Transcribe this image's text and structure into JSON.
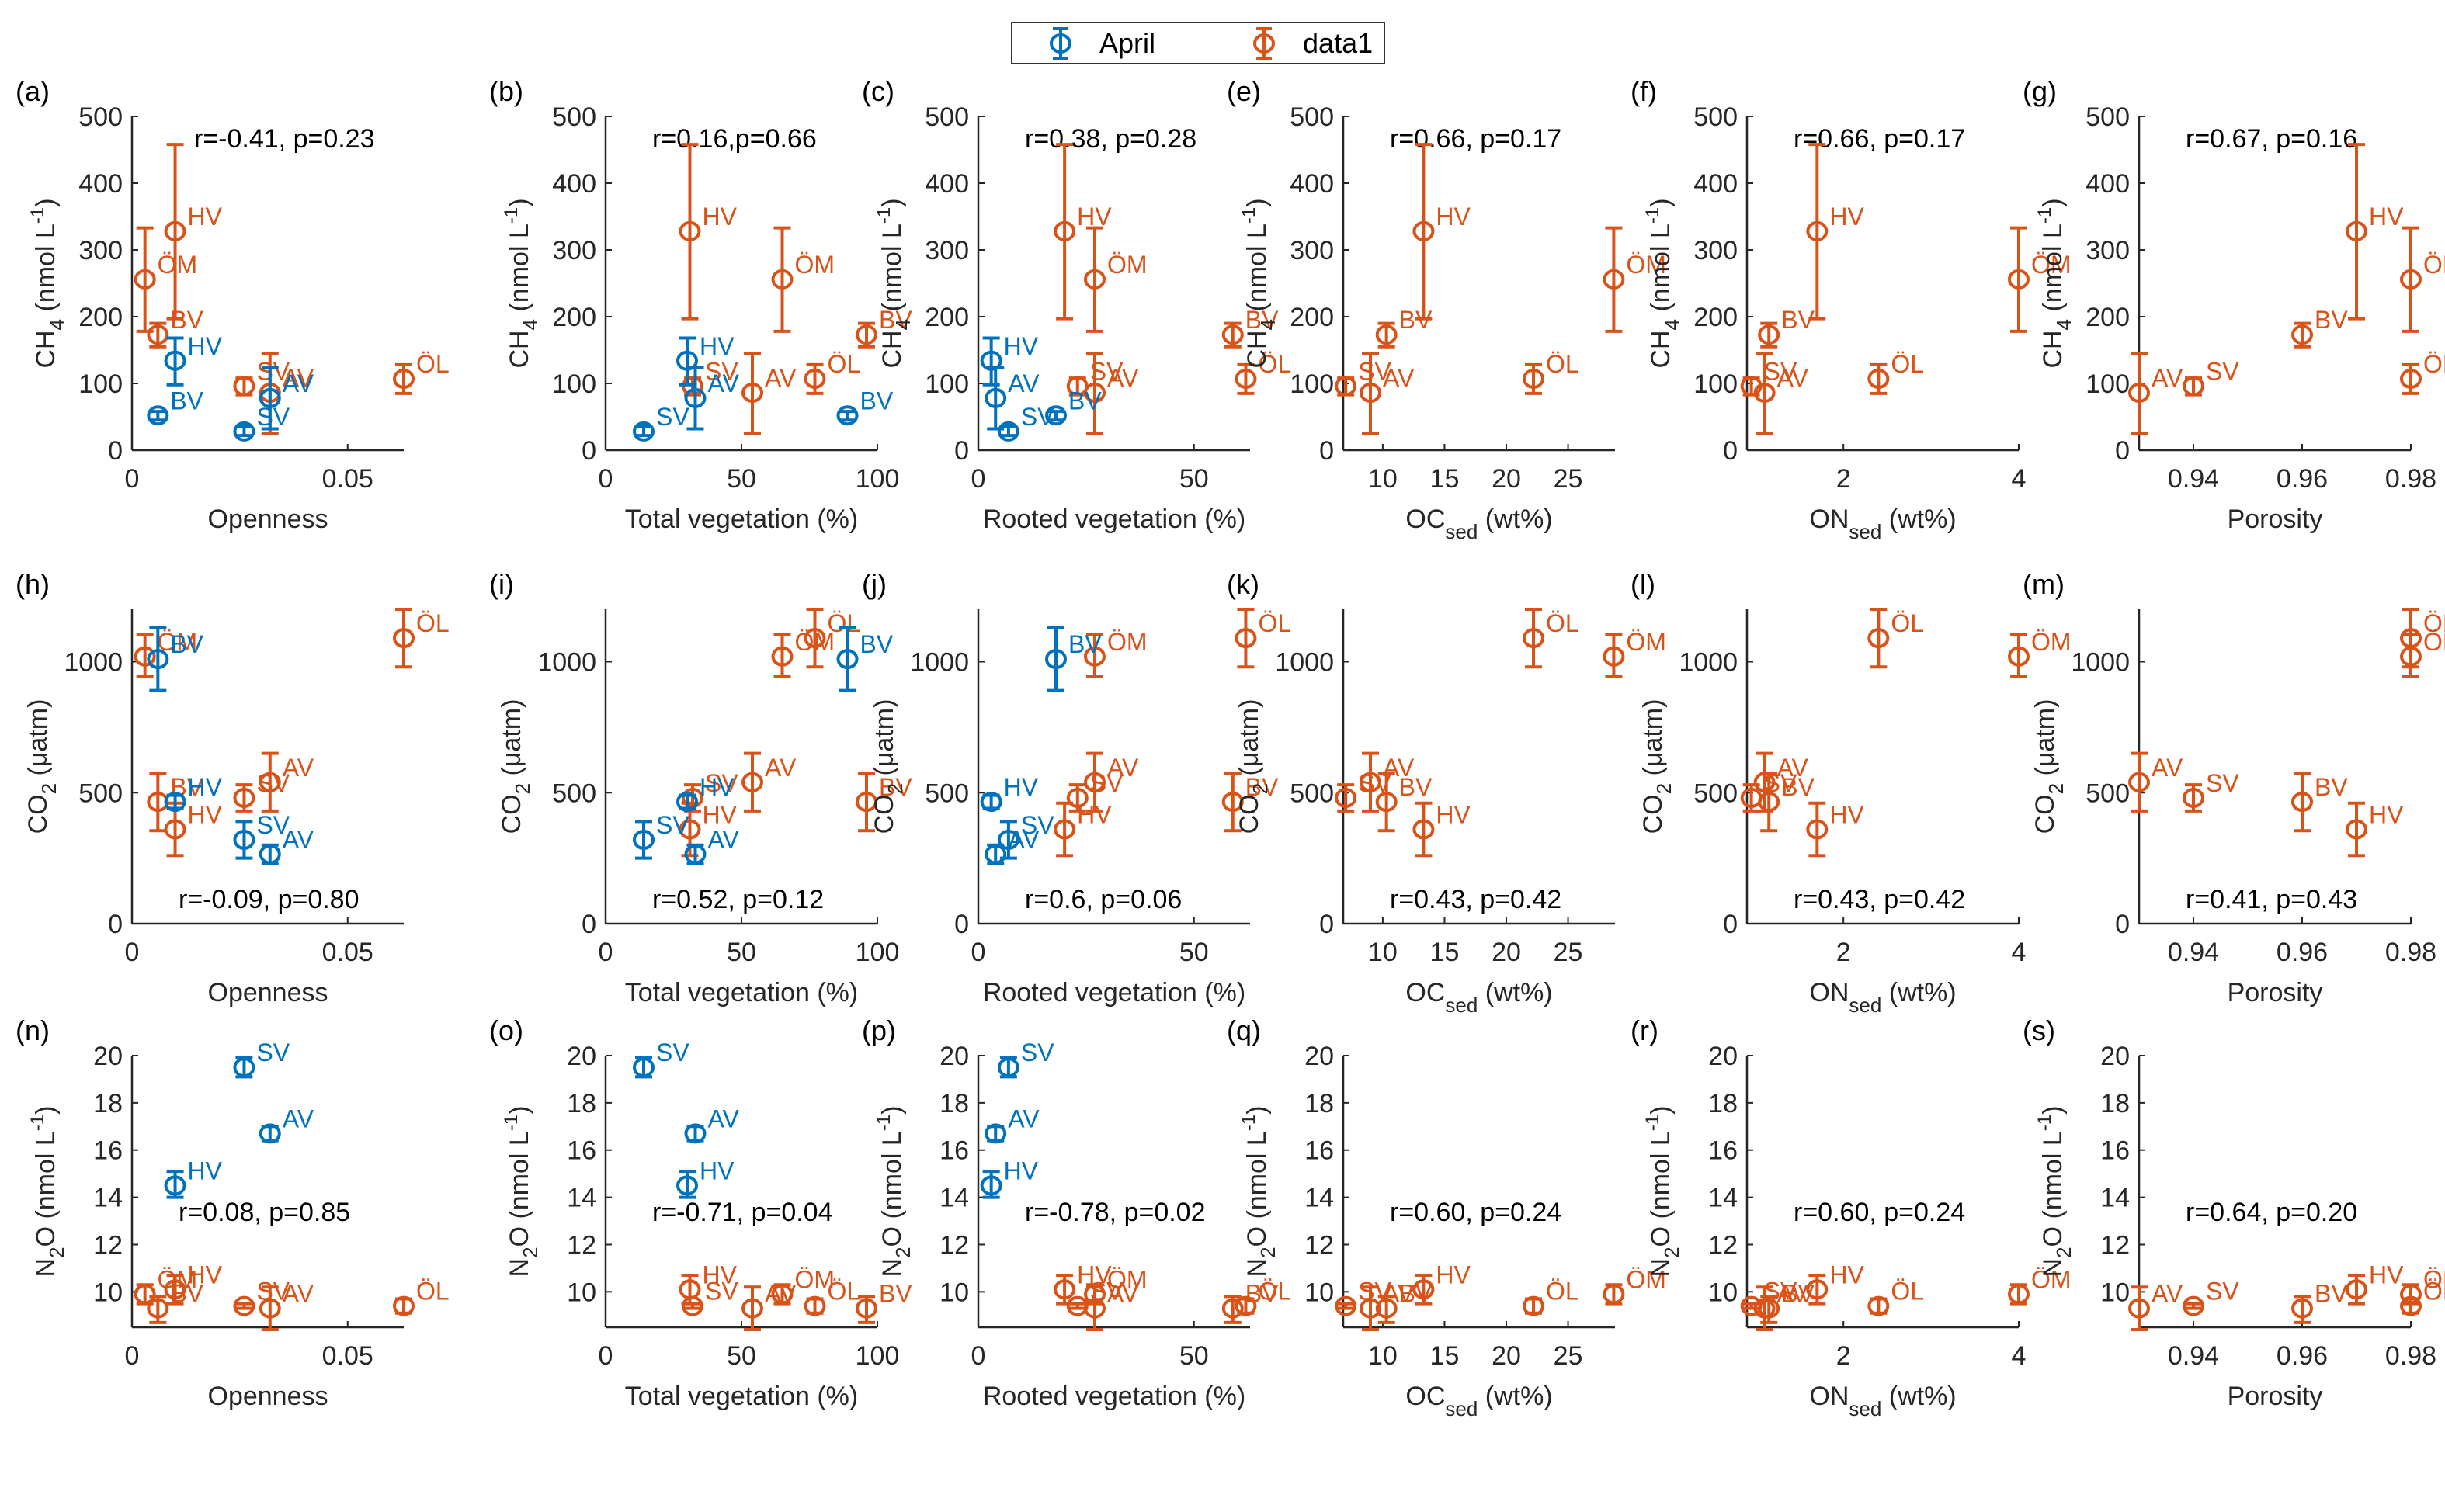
{
  "colors": {
    "April": "#0072BD",
    "data1": "#D95319",
    "axis": "#262626"
  },
  "legend": {
    "items": [
      {
        "label": "April",
        "color": "#0072BD"
      },
      {
        "label": "data1",
        "color": "#D95319"
      }
    ]
  },
  "chart_data": {
    "type": "scatter",
    "description": "3x6 grid of scatter plots with error bars: gases (CH4, CO2, N2O) vs site predictors",
    "predictors": {
      "Openness": {
        "xlabel": "Openness",
        "xlim": [
          0,
          0.063
        ],
        "xticks": [
          "0",
          "0.05"
        ],
        "xtickvals": [
          0,
          0.05
        ],
        "data1": {
          "ÖM": 0.003,
          "HV": 0.01,
          "BV": 0.006,
          "SV": 0.026,
          "AV": 0.032,
          "ÖL": 0.063
        },
        "April": {
          "BV": 0.006,
          "HV": 0.01,
          "SV": 0.026,
          "AV": 0.032
        }
      },
      "TotalVeg": {
        "xlabel": "Total vegetation (%)",
        "xlim": [
          0,
          100
        ],
        "xticks": [
          "0",
          "50",
          "100"
        ],
        "xtickvals": [
          0,
          50,
          100
        ],
        "data1": {
          "ÖM": 65,
          "HV": 31,
          "BV": 96,
          "SV": 32,
          "AV": 54,
          "ÖL": 77
        },
        "April": {
          "BV": 89,
          "HV": 30,
          "SV": 14,
          "AV": 33
        }
      },
      "RootedVeg": {
        "xlabel": "Rooted vegetation (%)",
        "xlim": [
          0,
          63
        ],
        "xticks": [
          "0",
          "50"
        ],
        "xtickvals": [
          0,
          50
        ],
        "data1": {
          "ÖM": 27,
          "HV": 20,
          "BV": 59,
          "SV": 23,
          "AV": 27,
          "ÖL": 62
        },
        "April": {
          "BV": 18,
          "HV": 3,
          "SV": 7,
          "AV": 4
        }
      },
      "OCsed": {
        "xlabel": "OC",
        "xlabel_sub": "sed",
        "xlabel_tail": " (wt%)",
        "xlim": [
          6.8,
          28.8
        ],
        "xticks": [
          "10",
          "15",
          "20",
          "25"
        ],
        "xtickvals": [
          10,
          15,
          20,
          25
        ],
        "data1": {
          "ÖM": 28.7,
          "HV": 13.3,
          "BV": 10.3,
          "SV": 7.0,
          "AV": 9.0,
          "ÖL": 22.2
        },
        "April": {}
      },
      "ONsed": {
        "xlabel": "ON",
        "xlabel_sub": "sed",
        "xlabel_tail": " (wt%)",
        "xlim": [
          0.9,
          4.0
        ],
        "xticks": [
          "2",
          "4"
        ],
        "xtickvals": [
          2,
          4
        ],
        "data1": {
          "ÖM": 4.0,
          "HV": 1.7,
          "BV": 1.15,
          "SV": 0.95,
          "AV": 1.1,
          "ÖL": 2.4
        },
        "April": {}
      },
      "Porosity": {
        "xlabel": "Porosity",
        "xlim": [
          0.93,
          0.98
        ],
        "xticks": [
          "0.94",
          "0.96",
          "0.98"
        ],
        "xtickvals": [
          0.94,
          0.96,
          0.98
        ],
        "data1": {
          "ÖM": 0.98,
          "HV": 0.97,
          "BV": 0.96,
          "SV": 0.94,
          "AV": 0.93,
          "ÖL": 0.98
        },
        "April": {}
      }
    },
    "gases": {
      "CH4": {
        "ylabel": "CH",
        "ylabel_sub": "4",
        "ylabel_tail": " (nmol L",
        "ylabel_sup": "-1",
        "ylabel_end": ")",
        "ylim": [
          0,
          500
        ],
        "yticks": [
          "0",
          "100",
          "200",
          "300",
          "400",
          "500"
        ],
        "ytickvals": [
          0,
          100,
          200,
          300,
          400,
          500
        ],
        "data1": {
          "ÖM": [
            256,
            178,
            333
          ],
          "HV": [
            328,
            197,
            458
          ],
          "BV": [
            173,
            155,
            190
          ],
          "SV": [
            96,
            83,
            108
          ],
          "AV": [
            86,
            25,
            145
          ],
          "ÖL": [
            107,
            85,
            128
          ]
        },
        "April": {
          "BV": [
            52,
            45,
            58
          ],
          "HV": [
            134,
            98,
            168
          ],
          "SV": [
            28,
            22,
            35
          ],
          "AV": [
            78,
            32,
            124
          ]
        }
      },
      "CO2": {
        "ylabel": "CO",
        "ylabel_sub": "2",
        "ylabel_tail": " (μatm)",
        "ylabel_sup": "",
        "ylabel_end": "",
        "ylim": [
          0,
          1200
        ],
        "yticks": [
          "0",
          "500",
          "1000"
        ],
        "ytickvals": [
          0,
          500,
          1000
        ],
        "data1": {
          "ÖM": [
            1020,
            945,
            1105
          ],
          "HV": [
            360,
            260,
            460
          ],
          "BV": [
            465,
            355,
            575
          ],
          "SV": [
            480,
            430,
            530
          ],
          "AV": [
            540,
            430,
            650
          ],
          "ÖL": [
            1090,
            980,
            1200
          ]
        },
        "April": {
          "BV": [
            1010,
            890,
            1130
          ],
          "HV": [
            465,
            440,
            490
          ],
          "SV": [
            320,
            250,
            390
          ],
          "AV": [
            265,
            230,
            300
          ]
        }
      },
      "N2O": {
        "ylabel": "N",
        "ylabel_sub": "2",
        "ylabel_tail": "O (nmol L",
        "ylabel_sup": "-1",
        "ylabel_end": ")",
        "ylim": [
          8.5,
          20
        ],
        "yticks": [
          "10",
          "12",
          "14",
          "16",
          "18",
          "20"
        ],
        "ytickvals": [
          10,
          12,
          14,
          16,
          18,
          20
        ],
        "data1": {
          "ÖM": [
            9.9,
            9.5,
            10.3
          ],
          "HV": [
            10.1,
            9.5,
            10.7
          ],
          "BV": [
            9.3,
            8.7,
            9.8
          ],
          "SV": [
            9.4,
            9.3,
            9.5
          ],
          "AV": [
            9.3,
            8.4,
            10.2
          ],
          "ÖL": [
            9.4,
            9.1,
            9.7
          ]
        },
        "April": {
          "SV": [
            19.5,
            19.1,
            19.9
          ],
          "AV": [
            16.7,
            16.4,
            17.0
          ],
          "HV": [
            14.5,
            14.0,
            15.1
          ]
        }
      }
    },
    "panels": [
      {
        "letter": "(a)",
        "gas": "CH4",
        "pred": "Openness",
        "stat": "r=-0.41, p=0.23",
        "stat_pos": "top-right"
      },
      {
        "letter": "(b)",
        "gas": "CH4",
        "pred": "TotalVeg",
        "stat": "r=0.16,p=0.66",
        "stat_pos": "top"
      },
      {
        "letter": "(c)",
        "gas": "CH4",
        "pred": "RootedVeg",
        "stat": "r=0.38, p=0.28",
        "stat_pos": "top"
      },
      {
        "letter": "(e)",
        "gas": "CH4",
        "pred": "OCsed",
        "stat": "r=0.66, p=0.17",
        "stat_pos": "top"
      },
      {
        "letter": "(f)",
        "gas": "CH4",
        "pred": "ONsed",
        "stat": "r=0.66, p=0.17",
        "stat_pos": "top"
      },
      {
        "letter": "(g)",
        "gas": "CH4",
        "pred": "Porosity",
        "stat": "r=0.67, p=0.16",
        "stat_pos": "top"
      },
      {
        "letter": "(h)",
        "gas": "CO2",
        "pred": "Openness",
        "stat": "r=-0.09, p=0.80",
        "stat_pos": "bottom"
      },
      {
        "letter": "(i)",
        "gas": "CO2",
        "pred": "TotalVeg",
        "stat": "r=0.52, p=0.12",
        "stat_pos": "bottom"
      },
      {
        "letter": "(j)",
        "gas": "CO2",
        "pred": "RootedVeg",
        "stat": "r=0.6, p=0.06",
        "stat_pos": "bottom"
      },
      {
        "letter": "(k)",
        "gas": "CO2",
        "pred": "OCsed",
        "stat": "r=0.43, p=0.42",
        "stat_pos": "bottom"
      },
      {
        "letter": "(l)",
        "gas": "CO2",
        "pred": "ONsed",
        "stat": "r=0.43, p=0.42",
        "stat_pos": "bottom"
      },
      {
        "letter": "(m)",
        "gas": "CO2",
        "pred": "Porosity",
        "stat": "r=0.41, p=0.43",
        "stat_pos": "bottom"
      },
      {
        "letter": "(n)",
        "gas": "N2O",
        "pred": "Openness",
        "stat": "r=0.08, p=0.85",
        "stat_pos": "middle"
      },
      {
        "letter": "(o)",
        "gas": "N2O",
        "pred": "TotalVeg",
        "stat": "r=-0.71, p=0.04",
        "stat_pos": "middle"
      },
      {
        "letter": "(p)",
        "gas": "N2O",
        "pred": "RootedVeg",
        "stat": "r=-0.78, p=0.02",
        "stat_pos": "middle"
      },
      {
        "letter": "(q)",
        "gas": "N2O",
        "pred": "OCsed",
        "stat": "r=0.60, p=0.24",
        "stat_pos": "middle"
      },
      {
        "letter": "(r)",
        "gas": "N2O",
        "pred": "ONsed",
        "stat": "r=0.60, p=0.24",
        "stat_pos": "middle"
      },
      {
        "letter": "(s)",
        "gas": "N2O",
        "pred": "Porosity",
        "stat": "r=0.64, p=0.20",
        "stat_pos": "middle"
      }
    ],
    "legend_position": "top-center",
    "grid": false
  }
}
